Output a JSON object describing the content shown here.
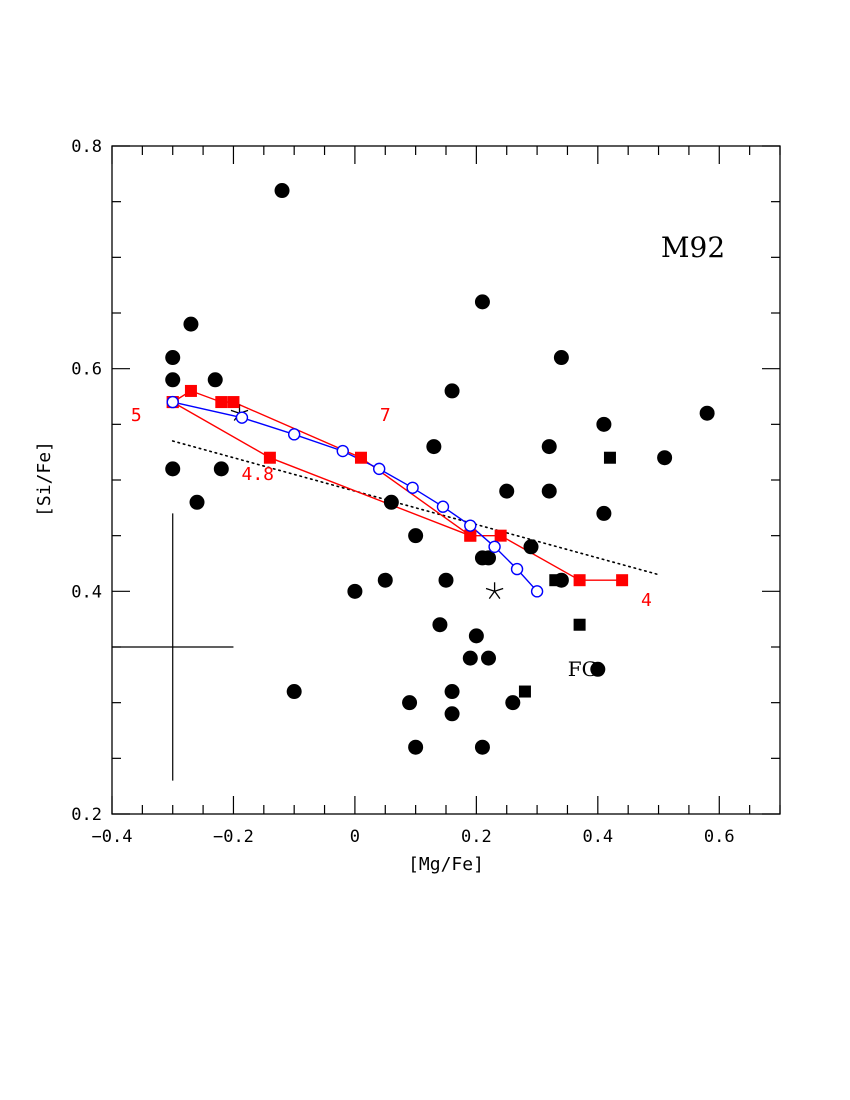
{
  "chart_data": {
    "type": "scatter",
    "title": "M92",
    "xlabel": "[Mg/Fe]",
    "ylabel": "[Si/Fe]",
    "xlim": [
      -0.4,
      0.7
    ],
    "ylim": [
      0.2,
      0.8
    ],
    "xticks": [
      -0.4,
      -0.2,
      0,
      0.2,
      0.4,
      0.6
    ],
    "xtick_labels": [
      "−0.4",
      "−0.2",
      "0",
      "0.2",
      "0.4",
      "0.6"
    ],
    "yticks": [
      0.2,
      0.4,
      0.6,
      0.8
    ],
    "ytick_labels": [
      "0.2",
      "0.4",
      "0.6",
      "0.8"
    ],
    "grid": false,
    "series": [
      {
        "marker": "filled-circle",
        "color": "#000000",
        "points": [
          [
            -0.12,
            0.76
          ],
          [
            -0.27,
            0.64
          ],
          [
            0.21,
            0.66
          ],
          [
            -0.3,
            0.61
          ],
          [
            0.34,
            0.61
          ],
          [
            -0.3,
            0.59
          ],
          [
            -0.23,
            0.59
          ],
          [
            0.16,
            0.58
          ],
          [
            0.58,
            0.56
          ],
          [
            0.41,
            0.55
          ],
          [
            0.13,
            0.53
          ],
          [
            0.32,
            0.53
          ],
          [
            -0.3,
            0.51
          ],
          [
            -0.22,
            0.51
          ],
          [
            0.51,
            0.52
          ],
          [
            0.25,
            0.49
          ],
          [
            0.32,
            0.49
          ],
          [
            -0.26,
            0.48
          ],
          [
            0.06,
            0.48
          ],
          [
            0.41,
            0.47
          ],
          [
            0.1,
            0.45
          ],
          [
            0.29,
            0.44
          ],
          [
            0.21,
            0.43
          ],
          [
            0.22,
            0.43
          ],
          [
            0.05,
            0.41
          ],
          [
            0.15,
            0.41
          ],
          [
            0.34,
            0.41
          ],
          [
            0.0,
            0.4
          ],
          [
            0.14,
            0.37
          ],
          [
            0.2,
            0.36
          ],
          [
            0.19,
            0.34
          ],
          [
            0.22,
            0.34
          ],
          [
            0.4,
            0.33
          ],
          [
            -0.1,
            0.31
          ],
          [
            0.16,
            0.31
          ],
          [
            0.09,
            0.3
          ],
          [
            0.26,
            0.3
          ],
          [
            0.16,
            0.29
          ],
          [
            0.1,
            0.26
          ],
          [
            0.21,
            0.26
          ]
        ]
      },
      {
        "marker": "filled-square",
        "color": "#000000",
        "points": [
          [
            0.42,
            0.52
          ],
          [
            0.33,
            0.41
          ],
          [
            0.37,
            0.37
          ],
          [
            0.28,
            0.31
          ]
        ]
      },
      {
        "marker": "asterisk",
        "color": "#000000",
        "points": [
          [
            0.23,
            0.4
          ],
          [
            -0.19,
            0.56
          ]
        ]
      },
      {
        "marker": "dotted-line",
        "color": "#000000",
        "points": [
          [
            -0.3,
            0.535
          ],
          [
            0.5,
            0.415
          ]
        ]
      },
      {
        "marker": "red-square-line",
        "color": "#ff0000",
        "points": [
          [
            -0.3,
            0.57
          ],
          [
            -0.27,
            0.58
          ],
          [
            -0.22,
            0.57
          ],
          [
            -0.2,
            0.57
          ],
          [
            0.01,
            0.52
          ],
          [
            0.19,
            0.45
          ],
          [
            0.24,
            0.45
          ],
          [
            0.37,
            0.41
          ],
          [
            0.44,
            0.41
          ]
        ]
      },
      {
        "marker": "red-square-line",
        "color": "#ff0000",
        "points": [
          [
            -0.3,
            0.57
          ],
          [
            -0.14,
            0.52
          ],
          [
            0.19,
            0.45
          ]
        ]
      },
      {
        "marker": "blue-open-circle-line",
        "color": "#0000ff",
        "points": [
          [
            -0.3,
            0.57
          ],
          [
            -0.186,
            0.556
          ],
          [
            -0.1,
            0.541
          ],
          [
            -0.02,
            0.526
          ],
          [
            0.04,
            0.51
          ],
          [
            0.095,
            0.493
          ],
          [
            0.145,
            0.476
          ],
          [
            0.19,
            0.459
          ],
          [
            0.23,
            0.44
          ],
          [
            0.267,
            0.42
          ],
          [
            0.3,
            0.4
          ]
        ]
      }
    ],
    "annotations": [
      {
        "text": "5",
        "x": -0.36,
        "y": 0.553,
        "color": "#ff0000"
      },
      {
        "text": "7",
        "x": 0.05,
        "y": 0.553,
        "color": "#ff0000"
      },
      {
        "text": "4.8",
        "x": -0.16,
        "y": 0.5,
        "color": "#ff0000"
      },
      {
        "text": "4",
        "x": 0.48,
        "y": 0.387,
        "color": "#ff0000"
      },
      {
        "text": "FG",
        "x": 0.375,
        "y": 0.324,
        "color": "#000000"
      }
    ],
    "error_bar": {
      "x": -0.3,
      "y": 0.35,
      "x_err": 0.1,
      "y_err": 0.12
    }
  }
}
